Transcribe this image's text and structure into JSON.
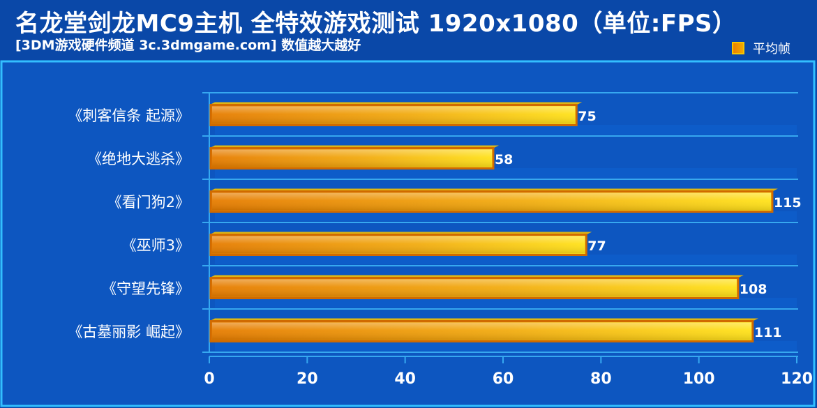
{
  "chart_data": {
    "type": "bar",
    "orientation": "horizontal",
    "title": "名龙堂剑龙MC9主机 全特效游戏测试 1920x1080（单位:FPS）",
    "subtitle": "[3DM游戏硬件频道 3c.3dmgame.com] 数值越大越好",
    "categories": [
      "《刺客信条 起源》",
      "《绝地大逃杀》",
      "《看门狗2》",
      "《巫师3》",
      "《守望先锋》",
      "《古墓丽影 崛起》"
    ],
    "series": [
      {
        "name": "平均帧",
        "values": [
          75,
          58,
          115,
          77,
          108,
          111
        ]
      }
    ],
    "xlim": [
      0,
      120
    ],
    "xticks": [
      0,
      20,
      40,
      60,
      80,
      100,
      120
    ],
    "grid": true,
    "legend_position": "top-right",
    "colors": {
      "background": "#0a48a8",
      "plot_background": "#0d56c0",
      "plot_border": "#33bfff",
      "grid": "#36a8f0",
      "bar_start": "#e67c00",
      "bar_end": "#ffe21a",
      "bar_border": "#d06a00",
      "text": "#ffffff"
    }
  }
}
